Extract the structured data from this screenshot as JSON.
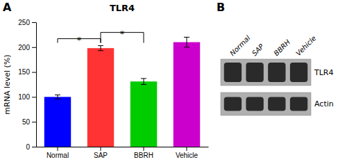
{
  "chart_data": [
    {
      "type": "bar",
      "panel": "A",
      "title": "TLR4",
      "categories": [
        "Normal",
        "SAP",
        "BBRH",
        "Vehicle"
      ],
      "values": [
        100,
        198,
        131,
        210
      ],
      "errors": [
        4,
        5,
        6,
        10
      ],
      "colors": [
        "#0000FF",
        "#FF3333",
        "#00CC00",
        "#CC00CC"
      ],
      "ylabel": "mRNA level (%)",
      "ylim": [
        0,
        250
      ],
      "yticks": [
        0,
        50,
        100,
        150,
        200,
        250
      ],
      "grid": false,
      "annotations": [
        {
          "label": "*",
          "between": [
            "Normal",
            "SAP"
          ]
        },
        {
          "label": "*",
          "between": [
            "SAP",
            "BBRH"
          ]
        }
      ]
    },
    {
      "type": "blot",
      "panel": "B",
      "categories": [
        "Normal",
        "SAP",
        "BBRH",
        "Vehicle"
      ],
      "color": "#B0B0B0",
      "rows": [
        {
          "name": "TLR4",
          "color": "#2A2A2A"
        },
        {
          "name": "Actin",
          "color": "#2A2A2A"
        }
      ]
    }
  ]
}
